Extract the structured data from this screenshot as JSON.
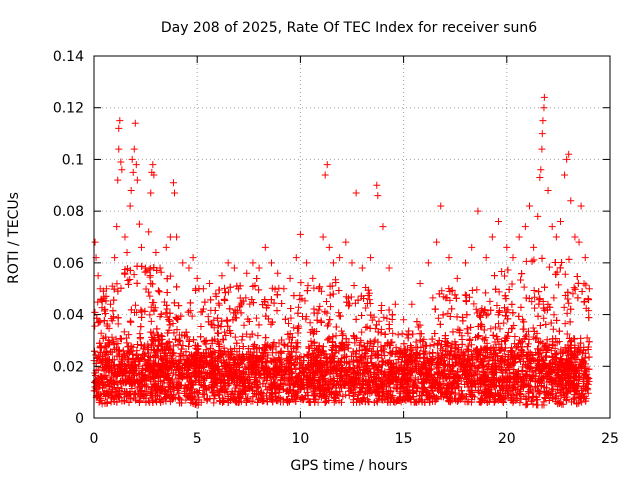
{
  "chart_data": {
    "type": "scatter",
    "title": "Day 208 of 2025, Rate Of TEC Index for receiver sun6",
    "xlabel": "GPS time / hours",
    "ylabel": "ROTI / TECUs",
    "xlim": [
      0,
      25
    ],
    "ylim": [
      0,
      0.14
    ],
    "xticks": [
      0,
      5,
      10,
      15,
      20,
      25
    ],
    "yticks": [
      0,
      0.02,
      0.04,
      0.06,
      0.08,
      0.1,
      0.12,
      0.14
    ],
    "xtick_labels": [
      "0",
      "5",
      "10",
      "15",
      "20",
      "25"
    ],
    "ytick_labels": [
      "0",
      "0.02",
      "0.04",
      "0.06",
      "0.08",
      "0.1",
      "0.12",
      "0.14"
    ],
    "grid": true,
    "marker": "+",
    "color": "#ff0000",
    "series": [
      {
        "points": [
          [
            0.05,
            0.068
          ],
          [
            0.1,
            0.062
          ],
          [
            0.2,
            0.055
          ],
          [
            0.3,
            0.05
          ],
          [
            0.4,
            0.045
          ],
          [
            0.6,
            0.05
          ],
          [
            0.8,
            0.044
          ],
          [
            1.0,
            0.062
          ],
          [
            1.1,
            0.074
          ],
          [
            1.15,
            0.092
          ],
          [
            1.2,
            0.104
          ],
          [
            1.2,
            0.112
          ],
          [
            1.25,
            0.115
          ],
          [
            1.3,
            0.099
          ],
          [
            1.35,
            0.096
          ],
          [
            1.5,
            0.07
          ],
          [
            1.6,
            0.064
          ],
          [
            1.75,
            0.082
          ],
          [
            1.8,
            0.088
          ],
          [
            1.85,
            0.1
          ],
          [
            1.9,
            0.095
          ],
          [
            1.95,
            0.104
          ],
          [
            2.0,
            0.114
          ],
          [
            2.05,
            0.098
          ],
          [
            2.1,
            0.092
          ],
          [
            2.2,
            0.075
          ],
          [
            2.3,
            0.066
          ],
          [
            2.5,
            0.058
          ],
          [
            2.65,
            0.072
          ],
          [
            2.75,
            0.087
          ],
          [
            2.8,
            0.095
          ],
          [
            2.85,
            0.098
          ],
          [
            2.9,
            0.094
          ],
          [
            3.0,
            0.064
          ],
          [
            3.2,
            0.058
          ],
          [
            3.5,
            0.066
          ],
          [
            3.7,
            0.07
          ],
          [
            3.85,
            0.091
          ],
          [
            3.9,
            0.087
          ],
          [
            4.0,
            0.07
          ],
          [
            4.3,
            0.06
          ],
          [
            4.6,
            0.058
          ],
          [
            4.8,
            0.062
          ],
          [
            5.0,
            0.054
          ],
          [
            5.3,
            0.05
          ],
          [
            5.6,
            0.052
          ],
          [
            5.9,
            0.048
          ],
          [
            6.2,
            0.055
          ],
          [
            6.5,
            0.06
          ],
          [
            6.8,
            0.058
          ],
          [
            7.0,
            0.05
          ],
          [
            7.4,
            0.056
          ],
          [
            7.7,
            0.06
          ],
          [
            8.0,
            0.058
          ],
          [
            8.3,
            0.066
          ],
          [
            8.6,
            0.06
          ],
          [
            8.9,
            0.056
          ],
          [
            9.2,
            0.05
          ],
          [
            9.5,
            0.054
          ],
          [
            9.8,
            0.062
          ],
          [
            10.0,
            0.071
          ],
          [
            10.3,
            0.06
          ],
          [
            10.6,
            0.054
          ],
          [
            10.9,
            0.05
          ],
          [
            11.1,
            0.07
          ],
          [
            11.2,
            0.094
          ],
          [
            11.3,
            0.098
          ],
          [
            11.4,
            0.066
          ],
          [
            11.6,
            0.06
          ],
          [
            11.9,
            0.062
          ],
          [
            12.2,
            0.068
          ],
          [
            12.5,
            0.06
          ],
          [
            12.7,
            0.087
          ],
          [
            13.0,
            0.058
          ],
          [
            13.4,
            0.062
          ],
          [
            13.7,
            0.09
          ],
          [
            13.75,
            0.086
          ],
          [
            14.0,
            0.074
          ],
          [
            14.3,
            0.058
          ],
          [
            14.6,
            0.044
          ],
          [
            15.0,
            0.038
          ],
          [
            15.4,
            0.044
          ],
          [
            15.8,
            0.052
          ],
          [
            16.2,
            0.06
          ],
          [
            16.6,
            0.068
          ],
          [
            16.8,
            0.082
          ],
          [
            17.2,
            0.062
          ],
          [
            17.6,
            0.054
          ],
          [
            18.0,
            0.06
          ],
          [
            18.3,
            0.066
          ],
          [
            18.6,
            0.08
          ],
          [
            19.0,
            0.062
          ],
          [
            19.3,
            0.07
          ],
          [
            19.6,
            0.076
          ],
          [
            20.0,
            0.066
          ],
          [
            20.3,
            0.062
          ],
          [
            20.6,
            0.07
          ],
          [
            20.9,
            0.074
          ],
          [
            21.1,
            0.082
          ],
          [
            21.3,
            0.066
          ],
          [
            21.5,
            0.078
          ],
          [
            21.6,
            0.093
          ],
          [
            21.65,
            0.096
          ],
          [
            21.7,
            0.104
          ],
          [
            21.72,
            0.11
          ],
          [
            21.75,
            0.115
          ],
          [
            21.8,
            0.12
          ],
          [
            21.82,
            0.124
          ],
          [
            22.0,
            0.088
          ],
          [
            22.2,
            0.074
          ],
          [
            22.4,
            0.07
          ],
          [
            22.6,
            0.076
          ],
          [
            22.8,
            0.094
          ],
          [
            22.9,
            0.1
          ],
          [
            23.0,
            0.102
          ],
          [
            23.1,
            0.084
          ],
          [
            23.3,
            0.07
          ],
          [
            23.5,
            0.068
          ],
          [
            23.6,
            0.082
          ],
          [
            23.8,
            0.062
          ],
          [
            24.0,
            0.05
          ]
        ]
      }
    ],
    "density_profile": {
      "hours": [
        0,
        1,
        2,
        3,
        4,
        5,
        6,
        7,
        8,
        9,
        10,
        11,
        12,
        13,
        14,
        15,
        16,
        17,
        18,
        19,
        20,
        21,
        22,
        23,
        24
      ],
      "upper": [
        0.045,
        0.055,
        0.06,
        0.058,
        0.055,
        0.05,
        0.05,
        0.052,
        0.055,
        0.05,
        0.055,
        0.052,
        0.055,
        0.052,
        0.045,
        0.035,
        0.045,
        0.05,
        0.052,
        0.055,
        0.058,
        0.062,
        0.065,
        0.062,
        0.05
      ],
      "lower": [
        0.005,
        0.006,
        0.006,
        0.006,
        0.006,
        0.005,
        0.006,
        0.006,
        0.006,
        0.006,
        0.006,
        0.006,
        0.006,
        0.006,
        0.006,
        0.006,
        0.006,
        0.006,
        0.006,
        0.006,
        0.006,
        0.005,
        0.005,
        0.005,
        0.006
      ],
      "core": 0.018
    }
  }
}
